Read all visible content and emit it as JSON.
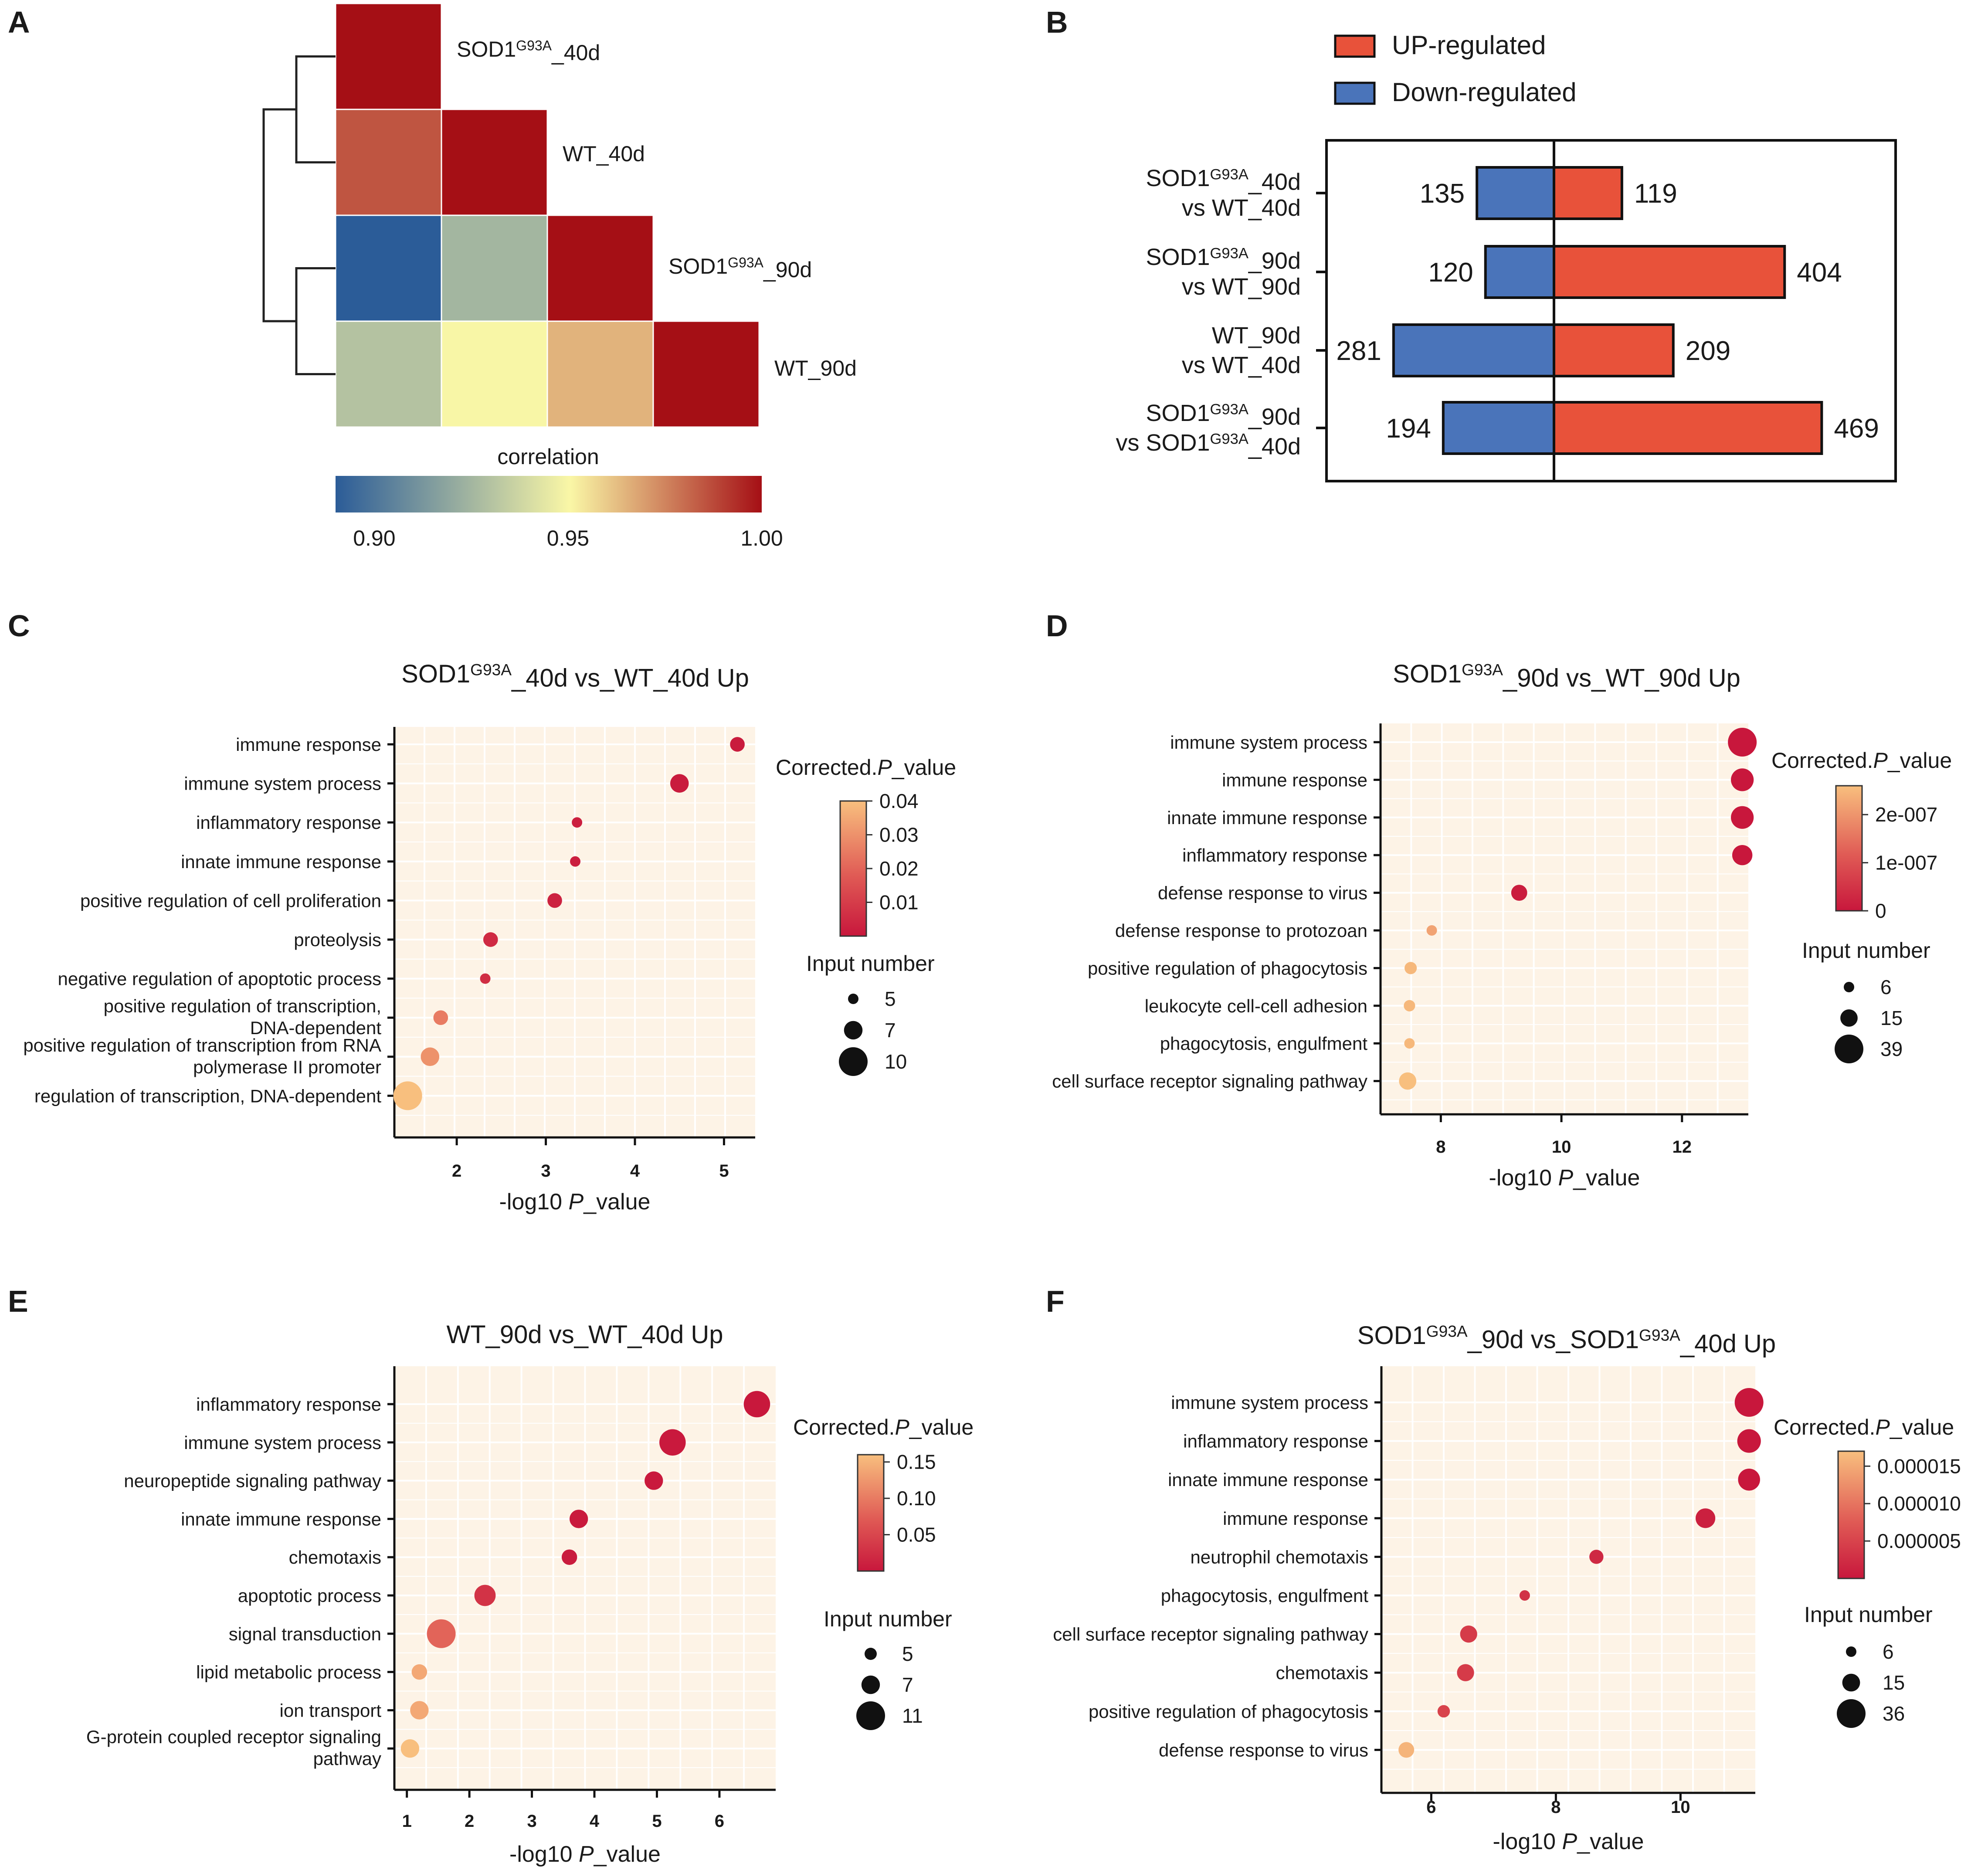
{
  "figure": {
    "panel_labels": [
      "A",
      "B",
      "C",
      "D",
      "E",
      "F"
    ]
  },
  "chart_data": [
    {
      "panel": "A",
      "type": "heatmap",
      "title": "",
      "samples": [
        "SOD1G93A_40d",
        "WT_40d",
        "SOD1G93A_90d",
        "WT_90d"
      ],
      "row_labels": [
        {
          "base": "SOD1",
          "sup": "G93A",
          "rest": "_40d"
        },
        {
          "base": "WT_40d",
          "sup": "",
          "rest": ""
        },
        {
          "base": "SOD1",
          "sup": "G93A",
          "rest": "_90d"
        },
        {
          "base": "WT_90d",
          "sup": "",
          "rest": ""
        }
      ],
      "matrix_lower": [
        [
          1.0
        ],
        [
          0.985,
          1.0
        ],
        [
          0.89,
          0.925,
          1.0
        ],
        [
          0.93,
          0.95,
          0.965,
          1.0
        ]
      ],
      "colorbar": {
        "title": "correlation",
        "range": [
          0.89,
          1.0
        ],
        "ticks": [
          "0.90",
          "0.95",
          "1.00"
        ],
        "tick_values": [
          0.9,
          0.95,
          1.0
        ]
      },
      "colors": {
        "low": "#2b5c98",
        "mid": "#faf7a6",
        "high": "#a50f15"
      }
    },
    {
      "panel": "B",
      "type": "bar",
      "orientation": "horizontal-diverging",
      "legend": [
        {
          "name": "UP-regulated",
          "color": "#e8523a"
        },
        {
          "name": "Down-regulated",
          "color": "#4a74ba"
        }
      ],
      "categories": [
        {
          "l1": [
            {
              "t": "SOD1"
            },
            {
              "t": "G93A",
              "sup": true
            },
            {
              "t": "_40d"
            }
          ],
          "l2": [
            {
              "t": "vs WT_40d"
            }
          ]
        },
        {
          "l1": [
            {
              "t": "SOD1"
            },
            {
              "t": "G93A",
              "sup": true
            },
            {
              "t": "_90d"
            }
          ],
          "l2": [
            {
              "t": "vs WT_90d"
            }
          ]
        },
        {
          "l1": [
            {
              "t": "WT_90d"
            }
          ],
          "l2": [
            {
              "t": "vs WT_40d"
            }
          ]
        },
        {
          "l1": [
            {
              "t": "SOD1"
            },
            {
              "t": "G93A",
              "sup": true
            },
            {
              "t": "_90d"
            }
          ],
          "l2": [
            {
              "t": "vs SOD1"
            },
            {
              "t": "G93A",
              "sup": true
            },
            {
              "t": "_40d"
            }
          ]
        }
      ],
      "series": [
        {
          "name": "Down-regulated",
          "values": [
            135,
            120,
            281,
            194
          ]
        },
        {
          "name": "UP-regulated",
          "values": [
            119,
            404,
            209,
            469
          ]
        }
      ],
      "xlim": [
        -500,
        600
      ]
    },
    {
      "panel": "C",
      "type": "scatter",
      "title_parts": [
        {
          "t": "SOD1"
        },
        {
          "t": "G93A",
          "sup": true
        },
        {
          "t": "_40d vs_WT_40d Up"
        }
      ],
      "xlabel_parts": [
        {
          "t": "-log10 "
        },
        {
          "t": "P",
          "italic": true
        },
        {
          "t": "_value"
        }
      ],
      "xlim": [
        1.3,
        5.35
      ],
      "xticks": [
        2,
        3,
        4,
        5
      ],
      "xtick_bold": true,
      "terms": [
        [
          "immune response"
        ],
        [
          "immune system process"
        ],
        [
          "inflammatory response"
        ],
        [
          "innate immune response"
        ],
        [
          "positive regulation of cell proliferation"
        ],
        [
          "proteolysis"
        ],
        [
          "negative regulation of apoptotic process"
        ],
        [
          "positive regulation of transcription,",
          "DNA-dependent"
        ],
        [
          "positive regulation of transcription from RNA",
          "polymerase II promoter"
        ],
        [
          "regulation of transcription, DNA-dependent"
        ]
      ],
      "x": [
        5.15,
        4.5,
        3.35,
        3.33,
        3.1,
        2.38,
        2.32,
        1.82,
        1.7,
        1.45
      ],
      "padj": [
        0.001,
        0.001,
        0.002,
        0.002,
        0.003,
        0.005,
        0.006,
        0.025,
        0.03,
        0.04
      ],
      "count": [
        6,
        7,
        5,
        5,
        6,
        6,
        5,
        6,
        7,
        10
      ],
      "color_legend": {
        "title_parts": [
          {
            "t": "Corrected."
          },
          {
            "t": "P",
            "italic": true
          },
          {
            "t": "_value"
          }
        ],
        "range": [
          0,
          0.04
        ],
        "ticks": [
          "0.04",
          "0.03",
          "0.02",
          "0.01"
        ],
        "tick_values": [
          0.04,
          0.03,
          0.02,
          0.01
        ]
      },
      "size_legend": {
        "title": "Input number",
        "labels": [
          "5",
          "7",
          "10"
        ],
        "values": [
          5,
          7,
          10
        ]
      }
    },
    {
      "panel": "D",
      "type": "scatter",
      "title_parts": [
        {
          "t": "SOD1"
        },
        {
          "t": "G93A",
          "sup": true
        },
        {
          "t": "_90d vs_WT_90d Up"
        }
      ],
      "xlabel_parts": [
        {
          "t": "-log10 "
        },
        {
          "t": "P",
          "italic": true
        },
        {
          "t": "_value"
        }
      ],
      "xlim": [
        7.0,
        13.1
      ],
      "xticks": [
        8,
        10,
        12
      ],
      "xtick_bold": true,
      "terms": [
        [
          "immune system process"
        ],
        [
          "immune response"
        ],
        [
          "innate immune response"
        ],
        [
          "inflammatory response"
        ],
        [
          "defense response to virus"
        ],
        [
          "defense response to protozoan"
        ],
        [
          "positive regulation of phagocytosis"
        ],
        [
          "leukocyte cell-cell adhesion"
        ],
        [
          "phagocytosis, engulfment"
        ],
        [
          "cell surface receptor signaling pathway"
        ]
      ],
      "x": [
        13.0,
        13.0,
        13.0,
        13.0,
        9.3,
        7.85,
        7.5,
        7.48,
        7.48,
        7.45
      ],
      "padj": [
        0,
        0,
        0,
        0,
        1e-08,
        2.2e-07,
        2.5e-07,
        2.5e-07,
        2.5e-07,
        2.6e-07
      ],
      "count": [
        39,
        25,
        25,
        20,
        13,
        6,
        8,
        7,
        6,
        15
      ],
      "color_legend": {
        "title_parts": [
          {
            "t": "Corrected."
          },
          {
            "t": "P",
            "italic": true
          },
          {
            "t": "_value"
          }
        ],
        "range": [
          0,
          2.6e-07
        ],
        "ticks": [
          "2e-007",
          "1e-007",
          "0"
        ],
        "tick_values": [
          2e-07,
          1e-07,
          0
        ]
      },
      "size_legend": {
        "title": "Input number",
        "labels": [
          "6",
          "15",
          "39"
        ],
        "values": [
          6,
          15,
          39
        ]
      }
    },
    {
      "panel": "E",
      "type": "scatter",
      "title_parts": [
        {
          "t": "WT_90d vs_WT_40d Up"
        }
      ],
      "xlabel_parts": [
        {
          "t": "-log10 "
        },
        {
          "t": "P",
          "italic": true
        },
        {
          "t": "_value"
        }
      ],
      "xlim": [
        0.8,
        6.9
      ],
      "xticks": [
        1,
        2,
        3,
        4,
        5,
        6
      ],
      "xtick_bold": true,
      "terms": [
        [
          "inflammatory response"
        ],
        [
          "immune system process"
        ],
        [
          "neuropeptide signaling pathway"
        ],
        [
          "innate immune response"
        ],
        [
          "chemotaxis"
        ],
        [
          "apoptotic process"
        ],
        [
          "signal transduction"
        ],
        [
          "lipid metabolic process"
        ],
        [
          "ion transport"
        ],
        [
          "G-protein coupled receptor signaling",
          "pathway"
        ]
      ],
      "x": [
        6.6,
        5.25,
        4.95,
        3.75,
        3.6,
        2.25,
        1.55,
        1.2,
        1.2,
        1.05
      ],
      "padj": [
        0.001,
        0.002,
        0.002,
        0.003,
        0.004,
        0.03,
        0.08,
        0.14,
        0.14,
        0.16
      ],
      "count": [
        10,
        10,
        7,
        7,
        6,
        8,
        11,
        6,
        7,
        7
      ],
      "color_legend": {
        "title_parts": [
          {
            "t": "Corrected."
          },
          {
            "t": "P",
            "italic": true
          },
          {
            "t": "_value"
          }
        ],
        "range": [
          0,
          0.16
        ],
        "ticks": [
          "0.15",
          "0.10",
          "0.05"
        ],
        "tick_values": [
          0.15,
          0.1,
          0.05
        ]
      },
      "size_legend": {
        "title": "Input number",
        "labels": [
          "5",
          "7",
          "11"
        ],
        "values": [
          5,
          7,
          11
        ]
      }
    },
    {
      "panel": "F",
      "type": "scatter",
      "title_parts": [
        {
          "t": "SOD1"
        },
        {
          "t": "G93A",
          "sup": true
        },
        {
          "t": "_90d vs_SOD1"
        },
        {
          "t": "G93A",
          "sup": true
        },
        {
          "t": "_40d Up"
        }
      ],
      "xlabel_parts": [
        {
          "t": "-log10 "
        },
        {
          "t": "P",
          "italic": true
        },
        {
          "t": "_value"
        }
      ],
      "xlim": [
        5.2,
        11.2
      ],
      "xticks": [
        6,
        8,
        10
      ],
      "xtick_bold": true,
      "terms": [
        [
          "immune system process"
        ],
        [
          "inflammatory response"
        ],
        [
          "innate immune response"
        ],
        [
          "immune response"
        ],
        [
          "neutrophil chemotaxis"
        ],
        [
          "phagocytosis, engulfment"
        ],
        [
          "cell surface receptor signaling pathway"
        ],
        [
          "chemotaxis"
        ],
        [
          "positive regulation of phagocytosis"
        ],
        [
          "defense response to virus"
        ]
      ],
      "x": [
        11.1,
        11.1,
        11.1,
        10.4,
        8.65,
        7.5,
        6.6,
        6.55,
        6.2,
        5.6
      ],
      "padj": [
        0,
        0,
        0,
        1e-06,
        2e-06,
        3e-06,
        4e-06,
        4e-06,
        5e-06,
        1.6e-05
      ],
      "count": [
        36,
        25,
        22,
        18,
        10,
        6,
        14,
        14,
        8,
        12
      ],
      "color_legend": {
        "title_parts": [
          {
            "t": "Corrected."
          },
          {
            "t": "P",
            "italic": true
          },
          {
            "t": "_value"
          }
        ],
        "range": [
          0,
          1.7e-05
        ],
        "ticks": [
          "0.000015",
          "0.000010",
          "0.000005"
        ],
        "tick_values": [
          1.5e-05,
          1e-05,
          5e-06
        ]
      },
      "size_legend": {
        "title": "Input number",
        "labels": [
          "6",
          "15",
          "36"
        ],
        "values": [
          6,
          15,
          36
        ]
      }
    }
  ]
}
